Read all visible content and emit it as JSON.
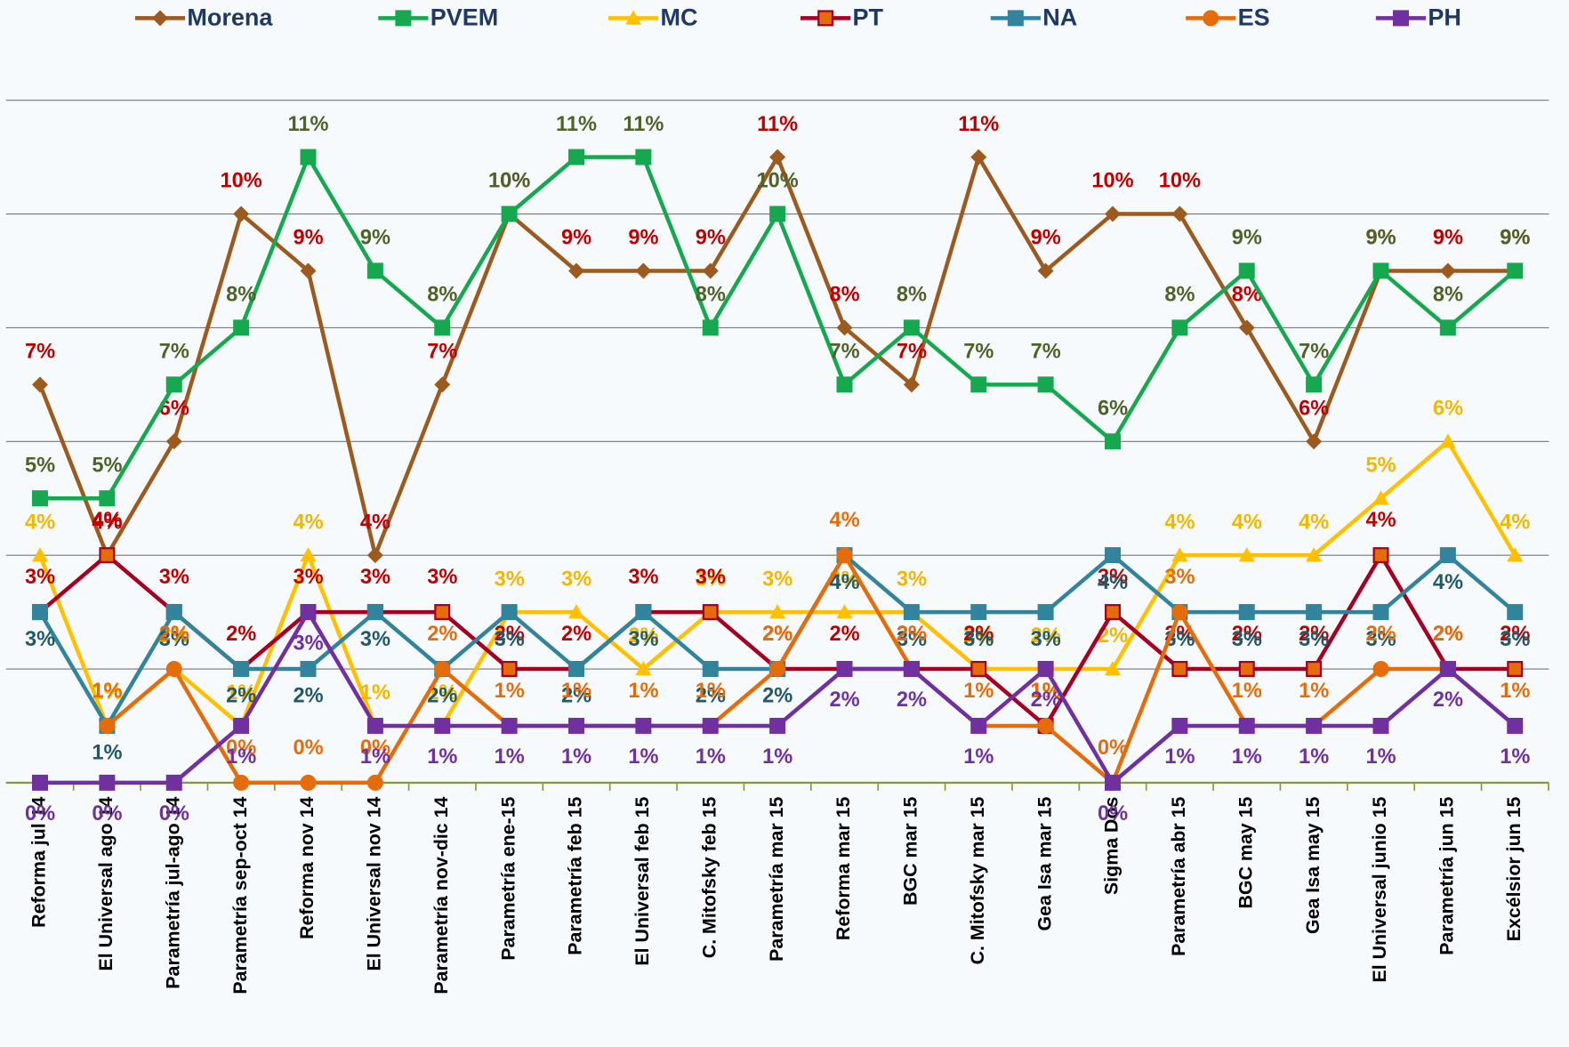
{
  "chart_data": {
    "type": "line",
    "categories": [
      "Reforma jul 14",
      "El Universal ago 14",
      "Parametría jul-ago 14",
      "Parametría sep-oct 14",
      "Reforma nov 14",
      "El Universal nov 14",
      "Parametría nov-dic 14",
      "Parametría ene-15",
      "Parametría feb 15",
      "El Universal feb 15",
      "C. Mitofsky feb 15",
      "Parametría mar 15",
      "Reforma mar 15",
      "BGC mar 15",
      "C. Mitofsky mar 15",
      "Gea Isa mar 15",
      "Sigma Dos",
      "Parametría abr 15",
      "BGC may 15",
      "Gea Isa may 15",
      "El Universal junio 15",
      "Parametría jun 15",
      "Excélsior jun 15"
    ],
    "series": [
      {
        "name": "Morena",
        "color": "#9c5a1e",
        "label_color": "#c00000",
        "marker": "diamond",
        "values": [
          7,
          4,
          6,
          10,
          9,
          4,
          7,
          10,
          9,
          9,
          9,
          11,
          8,
          7,
          11,
          9,
          10,
          10,
          8,
          6,
          9,
          9,
          9
        ],
        "value_labels": [
          "7%",
          "4%",
          "6%",
          "10%",
          "9%",
          "4%",
          "7%",
          "10%",
          "9%",
          "9%",
          "9%",
          "11%",
          "8%",
          "7%",
          "11%",
          "9%",
          "10%",
          "10%",
          "8%",
          "6%",
          "9%",
          "9%",
          "9%"
        ]
      },
      {
        "name": "PVEM",
        "color": "#16a84f",
        "label_color": "#4f6228",
        "marker": "square",
        "values": [
          5,
          5,
          7,
          8,
          11,
          9,
          8,
          10,
          11,
          11,
          8,
          10,
          7,
          8,
          7,
          7,
          6,
          8,
          9,
          7,
          9,
          8,
          9
        ],
        "value_labels": [
          "5%",
          "5%",
          "7%",
          "8%",
          "11%",
          "9%",
          "8%",
          "10%",
          "11%",
          "11%",
          "8%",
          "10%",
          "7%",
          "8%",
          "7%",
          "7%",
          "6%",
          "8%",
          "9%",
          "7%",
          "9%",
          "8%",
          "9%"
        ]
      },
      {
        "name": "MC",
        "color": "#ffc000",
        "label_color": "#f0b800",
        "marker": "triangle",
        "values": [
          4,
          1,
          2,
          1,
          4,
          1,
          1,
          3,
          3,
          2,
          3,
          3,
          3,
          3,
          2,
          2,
          2,
          4,
          4,
          4,
          5,
          6,
          4
        ],
        "value_labels": [
          "4%",
          "1%",
          "2%",
          "1%",
          "4%",
          "1%",
          "1%",
          "3%",
          "3%",
          "2%",
          "3%",
          "3%",
          "3%",
          "3%",
          "2%",
          "2%",
          "2%",
          "4%",
          "4%",
          "4%",
          "5%",
          "6%",
          "4%"
        ]
      },
      {
        "name": "PT",
        "color": "#a50021",
        "label_color": "#c00000",
        "marker": "square-outline",
        "values": [
          3,
          4,
          3,
          2,
          3,
          3,
          3,
          2,
          2,
          3,
          3,
          2,
          2,
          2,
          2,
          1,
          3,
          2,
          2,
          2,
          4,
          2,
          2
        ],
        "value_labels": [
          "3%",
          "4%",
          "3%",
          "2%",
          "3%",
          "3%",
          "3%",
          "2%",
          "2%",
          "3%",
          "3%",
          "2%",
          "2%",
          "2%",
          "2%",
          "1%",
          "3%",
          "2%",
          "2%",
          "2%",
          "4%",
          "2%",
          "2%"
        ]
      },
      {
        "name": "NA",
        "color": "#31849b",
        "label_color": "#215968",
        "marker": "square",
        "values": [
          3,
          1,
          3,
          2,
          2,
          3,
          2,
          3,
          2,
          3,
          2,
          2,
          4,
          3,
          3,
          3,
          4,
          3,
          3,
          3,
          3,
          4,
          3
        ],
        "value_labels": [
          "3%",
          "1%",
          "3%",
          "2%",
          "2%",
          "3%",
          "2%",
          "3%",
          "2%",
          "3%",
          "2%",
          "2%",
          "4%",
          "3%",
          "3%",
          "3%",
          "4%",
          "3%",
          "3%",
          "3%",
          "3%",
          "4%",
          "3%"
        ]
      },
      {
        "name": "ES",
        "color": "#e46c0a",
        "label_color": "#e46c0a",
        "marker": "circle",
        "values": [
          null,
          1,
          2,
          0,
          0,
          0,
          2,
          1,
          1,
          1,
          1,
          2,
          4,
          2,
          1,
          1,
          0,
          3,
          1,
          1,
          2,
          2,
          1
        ],
        "value_labels": [
          null,
          "1%",
          "2%",
          "0%",
          "0%",
          "0%",
          "2%",
          "1%",
          "1%",
          "1%",
          "1%",
          "2%",
          "4%",
          "2%",
          "1%",
          "1%",
          "0%",
          "3%",
          "1%",
          "1%",
          "2%",
          "2%",
          "1%"
        ]
      },
      {
        "name": "PH",
        "color": "#7030a0",
        "label_color": "#7030a0",
        "marker": "square",
        "values": [
          0,
          0,
          0,
          1,
          3,
          1,
          1,
          1,
          1,
          1,
          1,
          1,
          2,
          2,
          1,
          2,
          0,
          1,
          1,
          1,
          1,
          2,
          1
        ],
        "value_labels": [
          "0%",
          "0%",
          "0%",
          "1%",
          "3%",
          "1%",
          "1%",
          "1%",
          "1%",
          "1%",
          "1%",
          "1%",
          "2%",
          "2%",
          "1%",
          "2%",
          "0%",
          "1%",
          "1%",
          "1%",
          "1%",
          "2%",
          "1%"
        ]
      }
    ],
    "ylim": [
      0,
      12
    ],
    "yticks": [
      0,
      2,
      4,
      6,
      8,
      10,
      12
    ],
    "grid": true,
    "legend": "top"
  }
}
